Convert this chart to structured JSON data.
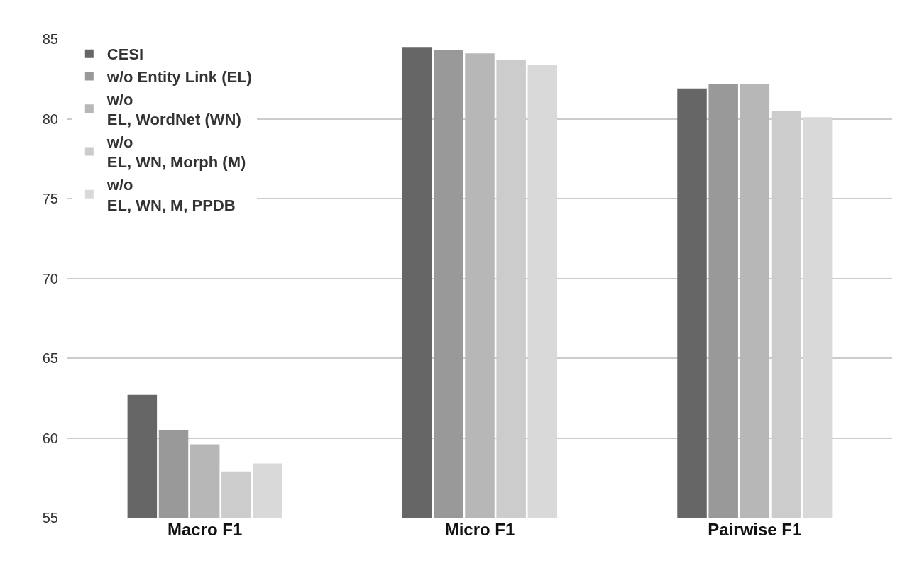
{
  "chart_data": {
    "type": "bar",
    "categories": [
      "Macro F1",
      "Micro F1",
      "Pairwise F1"
    ],
    "series": [
      {
        "name": "CESI",
        "color": "#666666",
        "values": [
          62.7,
          84.5,
          81.9
        ]
      },
      {
        "name": "w/o Entity Link (EL)",
        "color": "#999999",
        "values": [
          60.5,
          84.3,
          82.2
        ]
      },
      {
        "name": "w/o\nEL, WordNet (WN)",
        "color": "#b7b7b7",
        "values": [
          59.6,
          84.1,
          82.2
        ]
      },
      {
        "name": "w/o\nEL, WN, Morph (M)",
        "color": "#cccccc",
        "values": [
          57.9,
          83.7,
          80.5
        ]
      },
      {
        "name": "w/o\nEL, WN, M, PPDB",
        "color": "#d9d9d9",
        "values": [
          58.4,
          83.4,
          80.1
        ]
      }
    ],
    "ylim": [
      55,
      85
    ],
    "yticks": [
      55,
      60,
      65,
      70,
      75,
      80,
      85
    ],
    "grid": "y",
    "legend": "top left"
  }
}
